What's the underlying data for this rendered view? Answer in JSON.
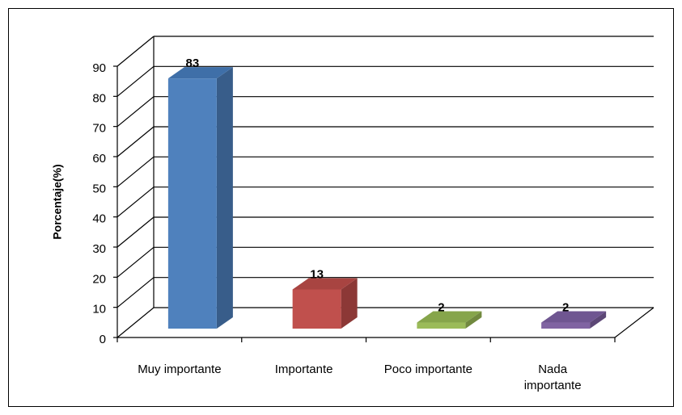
{
  "chart_data": {
    "type": "bar3d",
    "y_label": "Porcentaje(%)",
    "categories": [
      "Muy importante",
      "Importante",
      "Poco importante",
      "Nada importante"
    ],
    "values": [
      83,
      13,
      2,
      2
    ],
    "colors": [
      "#4f81bd",
      "#c0504d",
      "#9bbb59",
      "#8064a2"
    ],
    "side_colors": [
      "#385d8a",
      "#8c3836",
      "#71893f",
      "#5c4776"
    ],
    "top_colors": [
      "#3f6fa8",
      "#a84441",
      "#86a54b",
      "#6f5691"
    ],
    "ylim": [
      0,
      90
    ],
    "yticks": [
      0,
      10,
      20,
      30,
      40,
      50,
      60,
      70,
      80,
      90
    ],
    "grid": true
  }
}
